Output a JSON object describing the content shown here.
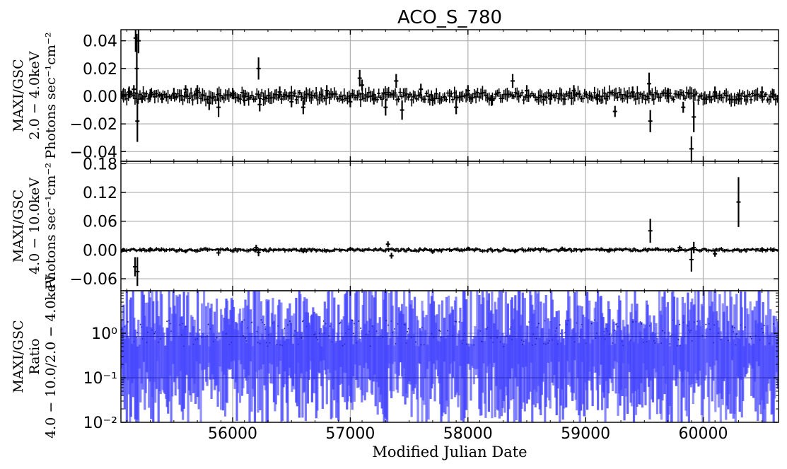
{
  "chart_data": {
    "type": "line",
    "title": "ACO_S_780",
    "xlabel": "Modified Julian Date",
    "xlim": [
      55050,
      60640
    ],
    "xticks": [
      "56000",
      "57000",
      "58000",
      "59000",
      "60000"
    ],
    "x_tick_values": [
      56000,
      57000,
      58000,
      59000,
      60000
    ],
    "grid": true,
    "panels": [
      {
        "name": "soft",
        "ylabel_lines": [
          "MAXI/GSC",
          "2.0 − 4.0keV",
          "Photons sec⁻¹cm⁻²"
        ],
        "ylim": [
          -0.047,
          0.048
        ],
        "yticks": [
          "0.04",
          "0.02",
          "0.00",
          "−0.02",
          "−0.04"
        ],
        "y_tick_values": [
          0.04,
          0.02,
          0.0,
          -0.02,
          -0.04
        ],
        "series_color": "#000000",
        "errorbars": [
          {
            "x": 55070,
            "y": 0.001,
            "err": 0.004
          },
          {
            "x": 55120,
            "y": 0.003,
            "err": 0.004
          },
          {
            "x": 55160,
            "y": 0.005,
            "err": 0.003
          },
          {
            "x": 55175,
            "y": 0.042,
            "err": 0.01
          },
          {
            "x": 55185,
            "y": 0.02,
            "err": 0.025
          },
          {
            "x": 55190,
            "y": -0.018,
            "err": 0.015
          },
          {
            "x": 55200,
            "y": 0.04,
            "err": 0.009
          },
          {
            "x": 55230,
            "y": -0.002,
            "err": 0.003
          },
          {
            "x": 55300,
            "y": 0.001,
            "err": 0.004
          },
          {
            "x": 55400,
            "y": -0.002,
            "err": 0.003
          },
          {
            "x": 55500,
            "y": 0.002,
            "err": 0.004
          },
          {
            "x": 55600,
            "y": 0.005,
            "err": 0.003
          },
          {
            "x": 55700,
            "y": 0.004,
            "err": 0.004
          },
          {
            "x": 55800,
            "y": -0.005,
            "err": 0.005
          },
          {
            "x": 55880,
            "y": -0.008,
            "err": 0.007
          },
          {
            "x": 56000,
            "y": 0.002,
            "err": 0.004
          },
          {
            "x": 56100,
            "y": -0.003,
            "err": 0.004
          },
          {
            "x": 56220,
            "y": 0.02,
            "err": 0.008
          },
          {
            "x": 56230,
            "y": -0.006,
            "err": 0.005
          },
          {
            "x": 56400,
            "y": 0.003,
            "err": 0.004
          },
          {
            "x": 56500,
            "y": -0.004,
            "err": 0.004
          },
          {
            "x": 56600,
            "y": -0.008,
            "err": 0.005
          },
          {
            "x": 56800,
            "y": 0.004,
            "err": 0.004
          },
          {
            "x": 57000,
            "y": -0.004,
            "err": 0.004
          },
          {
            "x": 57080,
            "y": 0.013,
            "err": 0.006
          },
          {
            "x": 57100,
            "y": 0.008,
            "err": 0.004
          },
          {
            "x": 57200,
            "y": -0.002,
            "err": 0.004
          },
          {
            "x": 57300,
            "y": -0.008,
            "err": 0.006
          },
          {
            "x": 57390,
            "y": 0.011,
            "err": 0.005
          },
          {
            "x": 57440,
            "y": -0.01,
            "err": 0.007
          },
          {
            "x": 57600,
            "y": 0.005,
            "err": 0.004
          },
          {
            "x": 57700,
            "y": -0.003,
            "err": 0.004
          },
          {
            "x": 57900,
            "y": -0.008,
            "err": 0.005
          },
          {
            "x": 58000,
            "y": 0.004,
            "err": 0.004
          },
          {
            "x": 58200,
            "y": -0.003,
            "err": 0.004
          },
          {
            "x": 58380,
            "y": 0.011,
            "err": 0.005
          },
          {
            "x": 58500,
            "y": 0.004,
            "err": 0.004
          },
          {
            "x": 58700,
            "y": -0.002,
            "err": 0.004
          },
          {
            "x": 58900,
            "y": 0.004,
            "err": 0.004
          },
          {
            "x": 59100,
            "y": -0.002,
            "err": 0.004
          },
          {
            "x": 59250,
            "y": -0.011,
            "err": 0.004
          },
          {
            "x": 59400,
            "y": 0.003,
            "err": 0.004
          },
          {
            "x": 59540,
            "y": 0.009,
            "err": 0.008
          },
          {
            "x": 59550,
            "y": -0.018,
            "err": 0.008
          },
          {
            "x": 59700,
            "y": 0.002,
            "err": 0.004
          },
          {
            "x": 59830,
            "y": -0.008,
            "err": 0.004
          },
          {
            "x": 59900,
            "y": -0.038,
            "err": 0.009
          },
          {
            "x": 59920,
            "y": -0.015,
            "err": 0.011
          },
          {
            "x": 60100,
            "y": 0.003,
            "err": 0.004
          },
          {
            "x": 60300,
            "y": -0.002,
            "err": 0.004
          },
          {
            "x": 60500,
            "y": 0.003,
            "err": 0.004
          },
          {
            "x": 60600,
            "y": 0.001,
            "err": 0.004
          }
        ]
      },
      {
        "name": "hard",
        "ylabel_lines": [
          "MAXI/GSC",
          "4.0 − 10.0keV",
          "Photons sec⁻¹cm⁻²"
        ],
        "ylim": [
          -0.085,
          0.185
        ],
        "yticks": [
          "0.18",
          "0.12",
          "0.06",
          "0.00",
          "−0.06"
        ],
        "y_tick_values": [
          0.18,
          0.12,
          0.06,
          0.0,
          -0.06
        ],
        "series_color": "#000000",
        "errorbars": [
          {
            "x": 55070,
            "y": 0.0,
            "err": 0.004
          },
          {
            "x": 55170,
            "y": -0.035,
            "err": 0.02
          },
          {
            "x": 55190,
            "y": -0.045,
            "err": 0.03
          },
          {
            "x": 55300,
            "y": 0.002,
            "err": 0.004
          },
          {
            "x": 55600,
            "y": -0.003,
            "err": 0.004
          },
          {
            "x": 55880,
            "y": -0.006,
            "err": 0.006
          },
          {
            "x": 56200,
            "y": 0.005,
            "err": 0.006
          },
          {
            "x": 56220,
            "y": -0.005,
            "err": 0.008
          },
          {
            "x": 56600,
            "y": -0.003,
            "err": 0.004
          },
          {
            "x": 57000,
            "y": 0.002,
            "err": 0.004
          },
          {
            "x": 57320,
            "y": 0.012,
            "err": 0.006
          },
          {
            "x": 57350,
            "y": -0.012,
            "err": 0.006
          },
          {
            "x": 57700,
            "y": -0.004,
            "err": 0.004
          },
          {
            "x": 58000,
            "y": 0.003,
            "err": 0.004
          },
          {
            "x": 58400,
            "y": -0.003,
            "err": 0.004
          },
          {
            "x": 58800,
            "y": 0.003,
            "err": 0.004
          },
          {
            "x": 59200,
            "y": -0.002,
            "err": 0.004
          },
          {
            "x": 59550,
            "y": 0.04,
            "err": 0.025
          },
          {
            "x": 59800,
            "y": 0.005,
            "err": 0.004
          },
          {
            "x": 59900,
            "y": -0.02,
            "err": 0.025
          },
          {
            "x": 59920,
            "y": 0.005,
            "err": 0.012
          },
          {
            "x": 60100,
            "y": -0.008,
            "err": 0.006
          },
          {
            "x": 60300,
            "y": 0.1,
            "err": 0.052
          },
          {
            "x": 60500,
            "y": 0.002,
            "err": 0.004
          },
          {
            "x": 60600,
            "y": 0.0,
            "err": 0.004
          }
        ]
      },
      {
        "name": "ratio",
        "ylabel_lines": [
          "MAXI/GSC",
          "Ratio",
          "4.0 − 10.0/2.0 − 4.0keV"
        ],
        "yscale": "log",
        "ylim": [
          0.01,
          9
        ],
        "yticks": [
          "10⁰",
          "10⁻¹",
          "10⁻²"
        ],
        "y_tick_values": [
          1,
          0.1,
          0.01
        ],
        "series_color": "#4444ff",
        "reference_lines": [
          0.85,
          0.1
        ],
        "note": "ratio error bars span most of the axis range at nearly every date"
      }
    ]
  }
}
